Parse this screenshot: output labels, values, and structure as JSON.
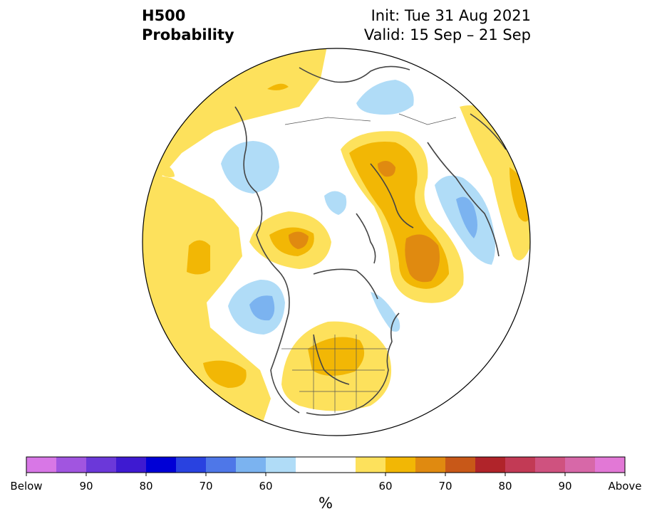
{
  "title": {
    "variable": "H500",
    "product": "Probability",
    "init": "Init: Tue 31 Aug 2021",
    "valid": "Valid: 15 Sep – 21 Sep"
  },
  "map": {
    "projection": "north-polar-stereographic",
    "region": "Northern Hemisphere",
    "anomaly_areas": [
      {
        "region": "north-pacific-mid",
        "category": "above",
        "level": "50-60"
      },
      {
        "region": "central-pacific",
        "category": "above",
        "level": "60-65"
      },
      {
        "region": "eastern-pacific",
        "category": "above",
        "level": "60-65"
      },
      {
        "region": "gulf-of-alaska",
        "category": "below",
        "level": "60-70"
      },
      {
        "region": "central-north-america",
        "category": "above",
        "level": "60-65"
      },
      {
        "region": "greenland-eastern-arctic",
        "category": "above",
        "level": "65-70"
      },
      {
        "region": "eastern-siberia",
        "category": "below",
        "level": "50-60"
      },
      {
        "region": "western-europe",
        "category": "below",
        "level": "60-70"
      },
      {
        "region": "ural-west-siberia",
        "category": "above",
        "level": "60-65"
      },
      {
        "region": "north-atlantic-east",
        "category": "above",
        "level": "50-60"
      }
    ]
  },
  "colorbar": {
    "unit": "%",
    "colors": [
      "#d877e6",
      "#a155e0",
      "#6b38d9",
      "#3e1ad1",
      "#0000d6",
      "#2942e0",
      "#4e77e8",
      "#7bb3f0",
      "#b0dcf7",
      "#ffffff",
      "#ffffff",
      "#fde15c",
      "#f2b705",
      "#e08a10",
      "#c85818",
      "#b0242a",
      "#c23a55",
      "#cf527f",
      "#d768a8",
      "#e278d6"
    ],
    "labels": [
      {
        "text": "Below",
        "index": 0
      },
      {
        "text": "90",
        "index": 2
      },
      {
        "text": "80",
        "index": 4
      },
      {
        "text": "70",
        "index": 6
      },
      {
        "text": "60",
        "index": 8
      },
      {
        "text": "60",
        "index": 12
      },
      {
        "text": "70",
        "index": 14
      },
      {
        "text": "80",
        "index": 16
      },
      {
        "text": "90",
        "index": 18
      },
      {
        "text": "Above",
        "index": 20
      }
    ]
  }
}
